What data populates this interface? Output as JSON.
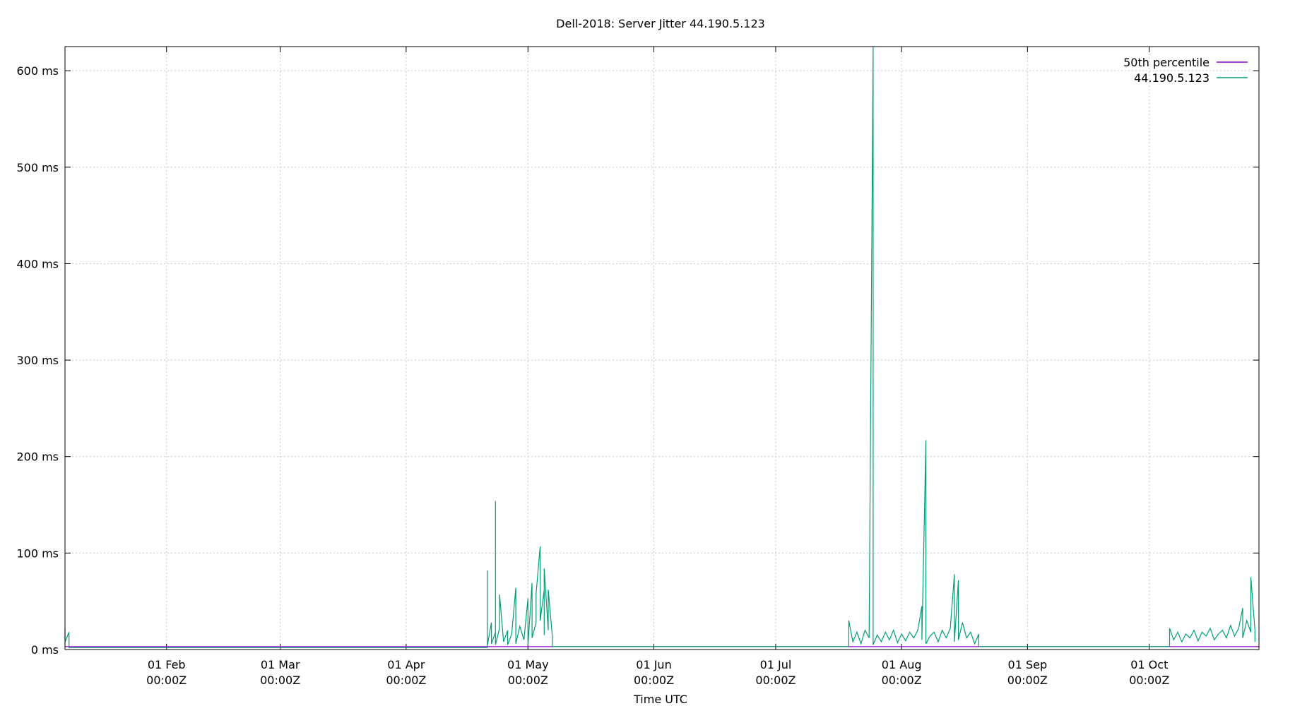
{
  "chart_data": {
    "type": "line",
    "title": "Dell-2018: Server Jitter 44.190.5.123",
    "xlabel": "Time UTC",
    "ylabel": "",
    "x_range": [
      "2023-01-07",
      "2023-10-28"
    ],
    "ylim": [
      0,
      625
    ],
    "y_unit": "ms",
    "y_ticks": [
      0,
      100,
      200,
      300,
      400,
      500,
      600
    ],
    "y_tick_labels": [
      "0 ms",
      "100 ms",
      "200 ms",
      "300 ms",
      "400 ms",
      "500 ms",
      "600 ms"
    ],
    "x_ticks": [
      {
        "date": "2023-02-01",
        "label1": "01 Feb",
        "label2": "00:00Z"
      },
      {
        "date": "2023-03-01",
        "label1": "01 Mar",
        "label2": "00:00Z"
      },
      {
        "date": "2023-04-01",
        "label1": "01 Apr",
        "label2": "00:00Z"
      },
      {
        "date": "2023-05-01",
        "label1": "01 May",
        "label2": "00:00Z"
      },
      {
        "date": "2023-06-01",
        "label1": "01 Jun",
        "label2": "00:00Z"
      },
      {
        "date": "2023-07-01",
        "label1": "01 Jul",
        "label2": "00:00Z"
      },
      {
        "date": "2023-08-01",
        "label1": "01 Aug",
        "label2": "00:00Z"
      },
      {
        "date": "2023-09-01",
        "label1": "01 Sep",
        "label2": "00:00Z"
      },
      {
        "date": "2023-10-01",
        "label1": "01 Oct",
        "label2": "00:00Z"
      }
    ],
    "grid": true,
    "legend_position": "top-right",
    "series": [
      {
        "name": "50th percentile",
        "color": "#9400d3",
        "points": [
          [
            "2023-01-07",
            3
          ],
          [
            "2023-10-28",
            3
          ]
        ]
      },
      {
        "name": "44.190.5.123",
        "color": "#009e73",
        "points": [
          [
            "2023-01-07",
            5
          ],
          [
            "2023-01-07",
            22
          ],
          [
            "2023-01-07",
            8
          ],
          [
            "2023-01-08",
            18
          ],
          [
            "2023-01-08",
            2
          ],
          [
            "2023-04-21",
            2
          ],
          [
            "2023-04-21",
            82
          ],
          [
            "2023-04-21",
            4
          ],
          [
            "2023-04-22",
            28
          ],
          [
            "2023-04-22",
            6
          ],
          [
            "2023-04-23",
            18
          ],
          [
            "2023-04-23",
            154
          ],
          [
            "2023-04-23",
            5
          ],
          [
            "2023-04-24",
            22
          ],
          [
            "2023-04-24",
            57
          ],
          [
            "2023-04-25",
            8
          ],
          [
            "2023-04-26",
            20
          ],
          [
            "2023-04-26",
            5
          ],
          [
            "2023-04-27",
            16
          ],
          [
            "2023-04-28",
            64
          ],
          [
            "2023-04-28",
            6
          ],
          [
            "2023-04-29",
            24
          ],
          [
            "2023-04-30",
            10
          ],
          [
            "2023-05-01",
            53
          ],
          [
            "2023-05-01",
            4
          ],
          [
            "2023-05-02",
            69
          ],
          [
            "2023-05-02",
            12
          ],
          [
            "2023-05-03",
            28
          ],
          [
            "2023-05-03",
            58
          ],
          [
            "2023-05-04",
            107
          ],
          [
            "2023-05-04",
            30
          ],
          [
            "2023-05-05",
            62
          ],
          [
            "2023-05-05",
            15
          ],
          [
            "2023-05-05",
            84
          ],
          [
            "2023-05-06",
            20
          ],
          [
            "2023-05-06",
            62
          ],
          [
            "2023-05-07",
            14
          ],
          [
            "2023-05-07",
            3
          ],
          [
            "2023-07-19",
            3
          ],
          [
            "2023-07-19",
            30
          ],
          [
            "2023-07-20",
            8
          ],
          [
            "2023-07-21",
            18
          ],
          [
            "2023-07-22",
            6
          ],
          [
            "2023-07-23",
            20
          ],
          [
            "2023-07-24",
            12
          ],
          [
            "2023-07-25",
            625
          ],
          [
            "2023-07-25",
            5
          ],
          [
            "2023-07-26",
            15
          ],
          [
            "2023-07-27",
            8
          ],
          [
            "2023-07-28",
            18
          ],
          [
            "2023-07-29",
            10
          ],
          [
            "2023-07-30",
            20
          ],
          [
            "2023-07-31",
            7
          ],
          [
            "2023-08-01",
            16
          ],
          [
            "2023-08-02",
            9
          ],
          [
            "2023-08-03",
            18
          ],
          [
            "2023-08-04",
            12
          ],
          [
            "2023-08-05",
            20
          ],
          [
            "2023-08-06",
            45
          ],
          [
            "2023-08-06",
            10
          ],
          [
            "2023-08-07",
            217
          ],
          [
            "2023-08-07",
            6
          ],
          [
            "2023-08-08",
            14
          ],
          [
            "2023-08-09",
            18
          ],
          [
            "2023-08-10",
            8
          ],
          [
            "2023-08-11",
            20
          ],
          [
            "2023-08-12",
            12
          ],
          [
            "2023-08-13",
            22
          ],
          [
            "2023-08-14",
            78
          ],
          [
            "2023-08-14",
            8
          ],
          [
            "2023-08-15",
            72
          ],
          [
            "2023-08-15",
            10
          ],
          [
            "2023-08-16",
            28
          ],
          [
            "2023-08-17",
            12
          ],
          [
            "2023-08-18",
            18
          ],
          [
            "2023-08-19",
            6
          ],
          [
            "2023-08-20",
            16
          ],
          [
            "2023-08-20",
            3
          ],
          [
            "2023-10-06",
            3
          ],
          [
            "2023-10-06",
            22
          ],
          [
            "2023-10-07",
            10
          ],
          [
            "2023-10-08",
            18
          ],
          [
            "2023-10-09",
            8
          ],
          [
            "2023-10-10",
            16
          ],
          [
            "2023-10-11",
            12
          ],
          [
            "2023-10-12",
            20
          ],
          [
            "2023-10-13",
            9
          ],
          [
            "2023-10-14",
            18
          ],
          [
            "2023-10-15",
            14
          ],
          [
            "2023-10-16",
            22
          ],
          [
            "2023-10-17",
            10
          ],
          [
            "2023-10-18",
            16
          ],
          [
            "2023-10-19",
            20
          ],
          [
            "2023-10-20",
            12
          ],
          [
            "2023-10-21",
            25
          ],
          [
            "2023-10-22",
            14
          ],
          [
            "2023-10-23",
            22
          ],
          [
            "2023-10-24",
            43
          ],
          [
            "2023-10-24",
            12
          ],
          [
            "2023-10-25",
            30
          ],
          [
            "2023-10-26",
            18
          ],
          [
            "2023-10-26",
            75
          ],
          [
            "2023-10-27",
            20
          ],
          [
            "2023-10-27",
            8
          ]
        ]
      }
    ]
  }
}
